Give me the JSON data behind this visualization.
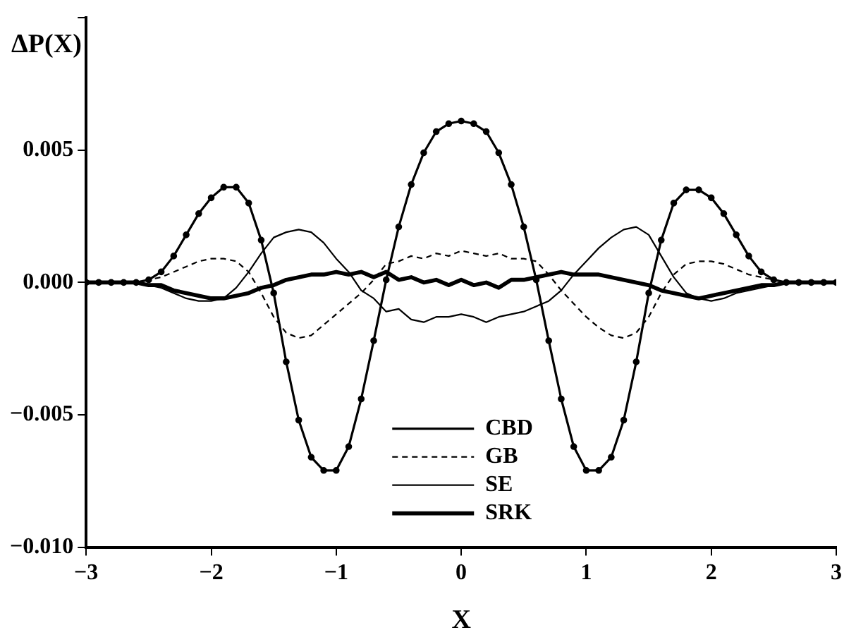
{
  "chart_data": {
    "type": "line",
    "xlabel": "X",
    "ylabel": "ΔP(X)",
    "x": [
      -3,
      -2.9,
      -2.8,
      -2.7,
      -2.6,
      -2.5,
      -2.4,
      -2.3,
      -2.2,
      -2.1,
      -2,
      -1.9,
      -1.8,
      -1.7,
      -1.6,
      -1.5,
      -1.4,
      -1.3,
      -1.2,
      -1.1,
      -1,
      -0.9,
      -0.8,
      -0.7,
      -0.6,
      -0.5,
      -0.4,
      -0.3,
      -0.2,
      -0.1,
      0,
      0.1,
      0.2,
      0.3,
      0.4,
      0.5,
      0.6,
      0.7,
      0.8,
      0.9,
      1,
      1.1,
      1.2,
      1.3,
      1.4,
      1.5,
      1.6,
      1.7,
      1.8,
      1.9,
      2,
      2.1,
      2.2,
      2.3,
      2.4,
      2.5,
      2.6,
      2.7,
      2.8,
      2.9,
      3
    ],
    "series": [
      {
        "name": "CBD",
        "color": "#000000",
        "marker": "circle",
        "line_style": "solid",
        "values": [
          0,
          0,
          0,
          0,
          0,
          0.0001,
          0.0004,
          0.001,
          0.0018,
          0.0026,
          0.0032,
          0.0036,
          0.0036,
          0.003,
          0.0016,
          -0.0004,
          -0.003,
          -0.0052,
          -0.0066,
          -0.0071,
          -0.0071,
          -0.0062,
          -0.0044,
          -0.0022,
          0.0001,
          0.0021,
          0.0037,
          0.0049,
          0.0057,
          0.006,
          0.0061,
          0.006,
          0.0057,
          0.0049,
          0.0037,
          0.0021,
          0.0001,
          -0.0022,
          -0.0044,
          -0.0062,
          -0.0071,
          -0.0071,
          -0.0066,
          -0.0052,
          -0.003,
          -0.0004,
          0.0016,
          0.003,
          0.0035,
          0.0035,
          0.0032,
          0.0026,
          0.0018,
          0.001,
          0.0004,
          0.0001,
          0,
          0,
          0,
          0,
          0
        ]
      },
      {
        "name": "GB",
        "color": "#000000",
        "marker": "none",
        "line_style": "dashed",
        "values": [
          0,
          0,
          0,
          0,
          0,
          0.0001,
          0.0002,
          0.0004,
          0.0006,
          0.0008,
          0.0009,
          0.0009,
          0.0008,
          0.0004,
          -0.0004,
          -0.0013,
          -0.0019,
          -0.0021,
          -0.002,
          -0.0016,
          -0.0012,
          -0.0008,
          -0.0004,
          0.0001,
          0.0007,
          0.0008,
          0.001,
          0.0009,
          0.0011,
          0.001,
          0.0012,
          0.0011,
          0.001,
          0.0011,
          0.0009,
          0.0009,
          0.0008,
          0.0003,
          -0.0003,
          -0.0008,
          -0.0013,
          -0.0017,
          -0.002,
          -0.0021,
          -0.0019,
          -0.0013,
          -0.0004,
          0.0003,
          0.0007,
          0.0008,
          0.0008,
          0.0007,
          0.0005,
          0.0003,
          0.0002,
          0.0001,
          0,
          0,
          0,
          0,
          0
        ]
      },
      {
        "name": "SE",
        "color": "#000000",
        "marker": "none",
        "line_style": "solid",
        "values": [
          0,
          0,
          0,
          0,
          0,
          -0.0001,
          -0.0002,
          -0.0004,
          -0.0006,
          -0.0007,
          -0.0007,
          -0.0006,
          -0.0002,
          0.0004,
          0.0011,
          0.0017,
          0.0019,
          0.002,
          0.0019,
          0.0015,
          0.0009,
          0.0004,
          -0.0003,
          -0.0006,
          -0.0011,
          -0.001,
          -0.0014,
          -0.0015,
          -0.0013,
          -0.0013,
          -0.0012,
          -0.0013,
          -0.0015,
          -0.0013,
          -0.0012,
          -0.0011,
          -0.0009,
          -0.0007,
          -0.0003,
          0.0003,
          0.0008,
          0.0013,
          0.0017,
          0.002,
          0.0021,
          0.0018,
          0.001,
          0.0002,
          -0.0004,
          -0.0006,
          -0.0007,
          -0.0006,
          -0.0004,
          -0.0003,
          -0.0002,
          -0.0001,
          0,
          0,
          0,
          0,
          0
        ]
      },
      {
        "name": "SRK",
        "color": "#000000",
        "marker": "none",
        "line_style": "solid",
        "values": [
          0,
          0,
          0,
          0,
          0,
          -0.0001,
          -0.0001,
          -0.0003,
          -0.0004,
          -0.0005,
          -0.0006,
          -0.0006,
          -0.0005,
          -0.0004,
          -0.0002,
          -0.0001,
          0.0001,
          0.0002,
          0.0003,
          0.0003,
          0.0004,
          0.0003,
          0.0004,
          0.0002,
          0.0004,
          0.0001,
          0.0002,
          0,
          0.0001,
          -0.0001,
          0.0001,
          -0.0001,
          0,
          -0.0002,
          0.0001,
          0.0001,
          0.0002,
          0.0003,
          0.0004,
          0.0003,
          0.0003,
          0.0003,
          0.0002,
          0.0001,
          0,
          -0.0001,
          -0.0003,
          -0.0004,
          -0.0005,
          -0.0006,
          -0.0005,
          -0.0004,
          -0.0003,
          -0.0002,
          -0.0001,
          -0.0001,
          0,
          0,
          0,
          0,
          0
        ]
      }
    ],
    "xlim": [
      -3,
      3
    ],
    "xticks": [
      {
        "value": -3,
        "label": "−3"
      },
      {
        "value": -2,
        "label": "−2"
      },
      {
        "value": -1,
        "label": "−1"
      },
      0,
      1,
      2,
      3
    ],
    "ylim": [
      -0.01,
      0.01
    ],
    "yticks": [
      {
        "value": -0.01,
        "label": "−0.010"
      },
      {
        "value": -0.005,
        "label": "−0.005"
      },
      {
        "value": 0,
        "label": "0.000"
      },
      {
        "value": 0.005,
        "label": "0.005"
      },
      {
        "value": 0.01,
        "label": null
      }
    ],
    "grid": false,
    "legend": "bottom"
  }
}
